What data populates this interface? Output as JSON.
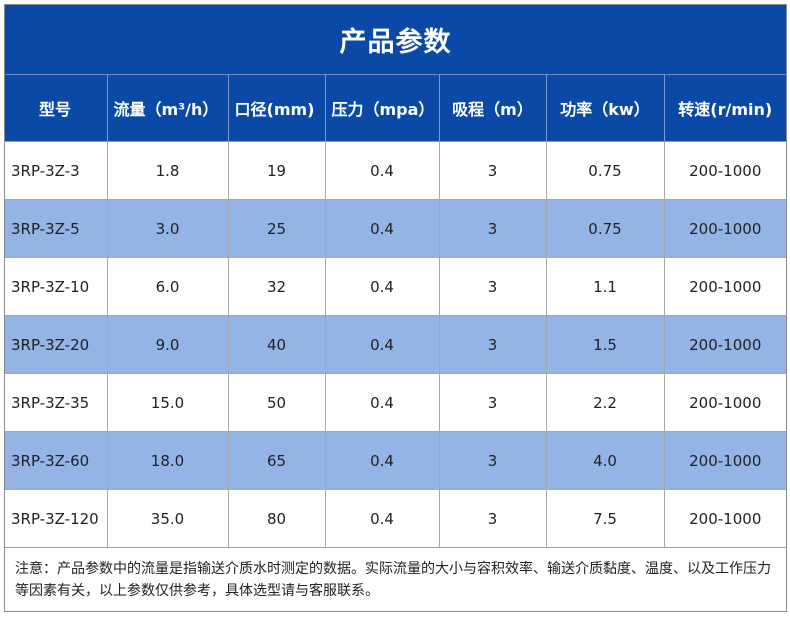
{
  "title": "产品参数",
  "table": {
    "headers": [
      "型号",
      "流量（m³/h）",
      "口径(mm)",
      "压力（mpa）",
      "吸程（m）",
      "功率（kw）",
      "转速(r/min)"
    ],
    "rows": [
      [
        "3RP-3Z-3",
        "1.8",
        "19",
        "0.4",
        "3",
        "0.75",
        "200-1000"
      ],
      [
        "3RP-3Z-5",
        "3.0",
        "25",
        "0.4",
        "3",
        "0.75",
        "200-1000"
      ],
      [
        "3RP-3Z-10",
        "6.0",
        "32",
        "0.4",
        "3",
        "1.1",
        "200-1000"
      ],
      [
        "3RP-3Z-20",
        "9.0",
        "40",
        "0.4",
        "3",
        "1.5",
        "200-1000"
      ],
      [
        "3RP-3Z-35",
        "15.0",
        "50",
        "0.4",
        "3",
        "2.2",
        "200-1000"
      ],
      [
        "3RP-3Z-60",
        "18.0",
        "65",
        "0.4",
        "3",
        "4.0",
        "200-1000"
      ],
      [
        "3RP-3Z-120",
        "35.0",
        "80",
        "0.4",
        "3",
        "7.5",
        "200-1000"
      ]
    ]
  },
  "note": "注意：产品参数中的流量是指输送介质水时测定的数据。实际流量的大小与容积效率、输送介质黏度、温度、以及工作压力等因素有关，以上参数仅供参考，具体选型请与客服联系。",
  "colors": {
    "header_bg": "#0a4aa6",
    "row_shade": "#93b4e4",
    "row_plain": "#ffffff"
  }
}
